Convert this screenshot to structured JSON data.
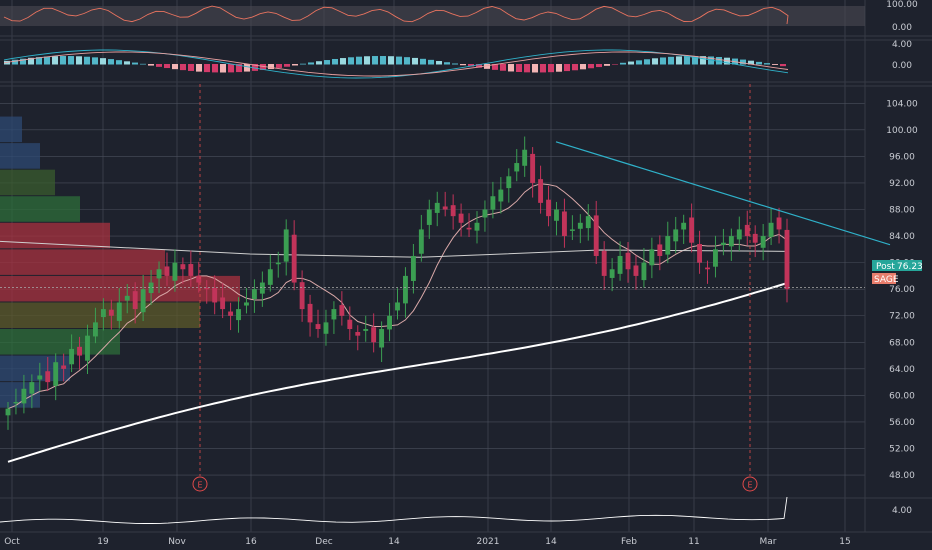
{
  "colors": {
    "background": "#1e222d",
    "grid": "#4a4f5c",
    "bullish": "#3b9e52",
    "bearish": "#c2345a",
    "trendline": "#2fb1c9",
    "earnings": "#e04a4a",
    "ma_short": "#d9a8a8",
    "ma_long": "#ffffff",
    "post_tag": "#26a69a",
    "symbol_tag": "#e87d6c",
    "rsi": "#e8735f",
    "macd": "#2fb1c9",
    "signal": "#e8a0a0"
  },
  "price_axis": {
    "ticks": [
      "104.00",
      "100.00",
      "96.00",
      "92.00",
      "88.00",
      "84.00",
      "80.00",
      "76.00",
      "72.00",
      "68.00",
      "64.00",
      "60.00",
      "56.00",
      "52.00",
      "48.00"
    ],
    "ylim": [
      45,
      106
    ]
  },
  "rsi_axis": {
    "ticks": [
      "100.00",
      "0.00"
    ]
  },
  "macd_axis": {
    "ticks": [
      "4.00",
      "0.00"
    ]
  },
  "vol_axis": {
    "ticks": [
      "4.00"
    ]
  },
  "x_axis": {
    "ticks": [
      "Oct",
      "19",
      "Nov",
      "16",
      "Dec",
      "14",
      "2021",
      "14",
      "Feb",
      "11",
      "Mar",
      "15"
    ]
  },
  "tags": {
    "post_label": "Post",
    "post_value": "76.23",
    "symbol": "SAGE"
  },
  "earnings_marker": "E",
  "chart_data": {
    "type": "candlestick",
    "x": [
      "Oct",
      "19",
      "Nov",
      "16",
      "Dec",
      "14",
      "2021",
      "14",
      "Feb",
      "11",
      "Mar",
      "15"
    ],
    "ylim": [
      45,
      106
    ],
    "last_price": 76.23,
    "ohlc_close": [
      58,
      59,
      61,
      62,
      63,
      62,
      65,
      64,
      67,
      66,
      69,
      71,
      73,
      72,
      74,
      75,
      73,
      76,
      77,
      79,
      78,
      80,
      79,
      78,
      77,
      76,
      74,
      73,
      72,
      73,
      74,
      76,
      77,
      79,
      80,
      85,
      77,
      73,
      71,
      70,
      71,
      73,
      72,
      70,
      69,
      70,
      68,
      70,
      72,
      74,
      78,
      81,
      85,
      88,
      89,
      88,
      87,
      86,
      85,
      86,
      88,
      90,
      91,
      93,
      95,
      97,
      92,
      89,
      87,
      88,
      84,
      85,
      86,
      87,
      81,
      78,
      79,
      81,
      79,
      78,
      80,
      82,
      81,
      84,
      85,
      86,
      83,
      80,
      79,
      82,
      83,
      84,
      85,
      84,
      83,
      84,
      86,
      85,
      76
    ]
  }
}
